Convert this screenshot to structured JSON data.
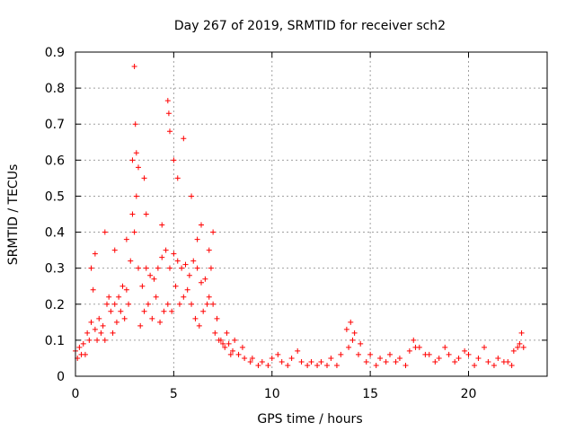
{
  "chart_data": {
    "type": "scatter",
    "title": "Day 267 of 2019, SRMTID for receiver sch2",
    "xlabel": "GPS time / hours",
    "ylabel": "SRMTID / TECUs",
    "xlim": [
      0,
      24
    ],
    "ylim": [
      0,
      0.9
    ],
    "x_ticks": [
      0,
      5,
      10,
      15,
      20
    ],
    "x_tick_labels": [
      "0",
      "5",
      "10",
      "15",
      "20"
    ],
    "y_ticks": [
      0,
      0.1,
      0.2,
      0.3,
      0.4,
      0.5,
      0.6,
      0.7,
      0.8,
      0.9
    ],
    "y_tick_labels": [
      "0",
      "0.1",
      "0.2",
      "0.3",
      "0.4",
      "0.5",
      "0.6",
      "0.7",
      "0.8",
      "0.9"
    ],
    "grid": true,
    "marker": "+",
    "series": [
      {
        "name": "sch2",
        "color": "#ff0000",
        "x": [
          0.0,
          0.2,
          0.4,
          0.6,
          0.8,
          1.0,
          1.2,
          1.4,
          1.6,
          1.8,
          2.0,
          2.2,
          2.4,
          2.6,
          2.8,
          3.0,
          3.2,
          3.4,
          3.6,
          3.8,
          4.0,
          4.2,
          4.4,
          4.6,
          4.8,
          5.0,
          5.2,
          5.4,
          5.6,
          5.8,
          6.0,
          6.2,
          6.4,
          6.6,
          6.8,
          7.0,
          7.2,
          7.4,
          7.6,
          7.8,
          8.0,
          8.3,
          8.6,
          9.0,
          9.5,
          10.0,
          10.5,
          11.0,
          11.5,
          12.0,
          12.5,
          13.0,
          13.5,
          13.8,
          14.0,
          14.2,
          14.5,
          15.0,
          15.5,
          16.0,
          16.5,
          17.0,
          17.2,
          17.5,
          18.0,
          18.5,
          19.0,
          19.5,
          20.0,
          20.5,
          21.0,
          21.5,
          22.0,
          22.3,
          22.6,
          22.8,
          0.1,
          0.3,
          0.5,
          0.7,
          0.9,
          1.1,
          1.3,
          1.5,
          1.7,
          1.9,
          2.1,
          2.3,
          2.5,
          2.7,
          2.9,
          3.1,
          3.3,
          3.5,
          3.7,
          3.9,
          4.1,
          4.3,
          4.5,
          4.7,
          4.9,
          5.1,
          5.3,
          5.5,
          5.7,
          5.9,
          6.1,
          6.3,
          6.5,
          6.7,
          6.9,
          7.1,
          7.3,
          7.5,
          7.7,
          7.9,
          8.1,
          8.5,
          8.9,
          9.3,
          9.8,
          10.3,
          10.8,
          11.3,
          11.8,
          12.3,
          12.8,
          13.3,
          13.9,
          14.1,
          14.4,
          14.8,
          15.3,
          15.8,
          16.3,
          16.8,
          17.3,
          17.8,
          18.3,
          18.8,
          19.3,
          19.8,
          20.3,
          20.8,
          21.3,
          21.8,
          22.2,
          22.5,
          22.7,
          3.0,
          3.05,
          3.1,
          4.7,
          4.75,
          5.5,
          2.9,
          3.2,
          5.0,
          4.8,
          3.5,
          3.6,
          4.4,
          6.4,
          6.2,
          1.5,
          1.0,
          0.8,
          2.0,
          2.6,
          5.2,
          5.9,
          7.0,
          6.8
        ],
        "y": [
          0.07,
          0.08,
          0.09,
          0.12,
          0.15,
          0.13,
          0.16,
          0.14,
          0.2,
          0.18,
          0.2,
          0.22,
          0.25,
          0.24,
          0.32,
          0.4,
          0.3,
          0.25,
          0.3,
          0.28,
          0.27,
          0.3,
          0.33,
          0.35,
          0.3,
          0.34,
          0.32,
          0.3,
          0.31,
          0.28,
          0.32,
          0.3,
          0.26,
          0.27,
          0.22,
          0.2,
          0.16,
          0.1,
          0.08,
          0.09,
          0.07,
          0.06,
          0.05,
          0.05,
          0.04,
          0.05,
          0.04,
          0.05,
          0.04,
          0.04,
          0.04,
          0.05,
          0.06,
          0.13,
          0.15,
          0.12,
          0.09,
          0.06,
          0.05,
          0.06,
          0.05,
          0.07,
          0.1,
          0.08,
          0.06,
          0.05,
          0.06,
          0.05,
          0.06,
          0.05,
          0.04,
          0.05,
          0.04,
          0.07,
          0.09,
          0.08,
          0.05,
          0.06,
          0.06,
          0.1,
          0.24,
          0.1,
          0.12,
          0.1,
          0.22,
          0.12,
          0.15,
          0.18,
          0.16,
          0.2,
          0.45,
          0.5,
          0.14,
          0.18,
          0.2,
          0.16,
          0.22,
          0.15,
          0.18,
          0.2,
          0.18,
          0.25,
          0.2,
          0.22,
          0.24,
          0.2,
          0.16,
          0.14,
          0.18,
          0.2,
          0.3,
          0.12,
          0.1,
          0.09,
          0.12,
          0.06,
          0.1,
          0.08,
          0.04,
          0.03,
          0.03,
          0.06,
          0.03,
          0.07,
          0.03,
          0.03,
          0.03,
          0.03,
          0.08,
          0.1,
          0.06,
          0.04,
          0.03,
          0.04,
          0.04,
          0.03,
          0.08,
          0.06,
          0.04,
          0.08,
          0.04,
          0.07,
          0.03,
          0.08,
          0.03,
          0.04,
          0.03,
          0.08,
          0.12,
          0.86,
          0.7,
          0.62,
          0.765,
          0.73,
          0.66,
          0.6,
          0.58,
          0.6,
          0.68,
          0.55,
          0.45,
          0.42,
          0.42,
          0.38,
          0.4,
          0.34,
          0.3,
          0.35,
          0.38,
          0.55,
          0.5,
          0.4,
          0.35
        ]
      }
    ]
  }
}
